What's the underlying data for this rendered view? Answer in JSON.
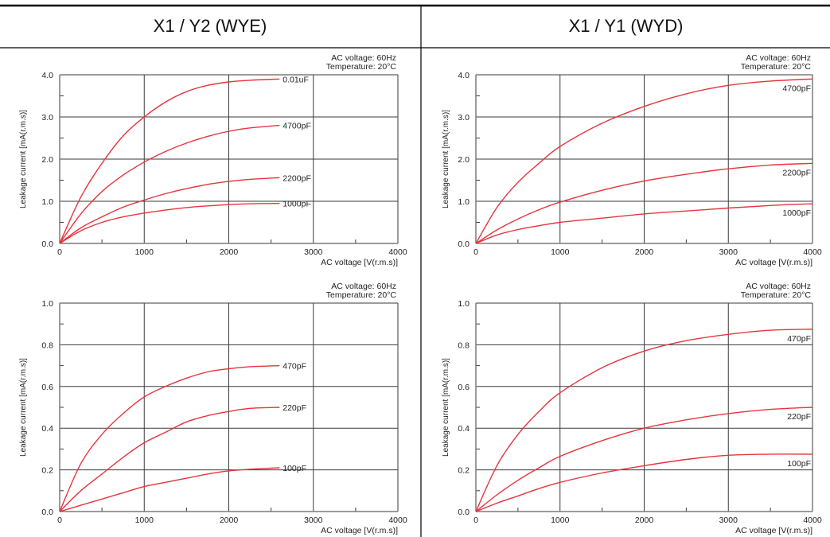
{
  "table": {
    "left_header": "X1 / Y2 (WYE)",
    "right_header": "X1 / Y1 (WYD)"
  },
  "colors": {
    "curve": "#e8333d",
    "grid": "#3a3a3a",
    "axis": "#7a7a7a"
  },
  "chart_data": [
    {
      "type": "line",
      "note1": "AC voltage: 60Hz",
      "note2": "Temperature: 20°C",
      "xlabel": "AC voltage [V(r.m.s)]",
      "ylabel": "Leakage current [mA(r.m.s)]",
      "xlim": [
        0,
        4000
      ],
      "ylim": [
        0,
        4.0
      ],
      "xticks": [
        "0",
        "1000",
        "2000",
        "3000",
        "4000"
      ],
      "yticks": [
        "0.0",
        "1.0",
        "2.0",
        "3.0",
        "4.0"
      ],
      "grid": true,
      "series": [
        {
          "name": "0.01uF",
          "x": [
            0,
            250,
            500,
            750,
            1000,
            1250,
            1500,
            1750,
            2000,
            2250,
            2600
          ],
          "y": [
            0,
            1.1,
            1.9,
            2.55,
            3.0,
            3.35,
            3.6,
            3.75,
            3.83,
            3.87,
            3.9
          ]
        },
        {
          "name": "4700pF",
          "x": [
            0,
            250,
            500,
            750,
            1000,
            1250,
            1500,
            1750,
            2000,
            2250,
            2600
          ],
          "y": [
            0,
            0.7,
            1.23,
            1.62,
            1.93,
            2.18,
            2.38,
            2.54,
            2.66,
            2.74,
            2.8
          ]
        },
        {
          "name": "2200pF",
          "x": [
            0,
            250,
            500,
            750,
            1000,
            1250,
            1500,
            1750,
            2000,
            2250,
            2600
          ],
          "y": [
            0,
            0.37,
            0.63,
            0.86,
            1.03,
            1.18,
            1.3,
            1.4,
            1.47,
            1.52,
            1.56
          ]
        },
        {
          "name": "1000pF",
          "x": [
            0,
            250,
            500,
            750,
            1000,
            1250,
            1500,
            1750,
            2000,
            2250,
            2600
          ],
          "y": [
            0,
            0.3,
            0.5,
            0.63,
            0.72,
            0.79,
            0.85,
            0.89,
            0.92,
            0.94,
            0.95
          ]
        }
      ]
    },
    {
      "type": "line",
      "note1": "AC voltage: 60Hz",
      "note2": "Temperature: 20°C",
      "xlabel": "AC voltage [V(r.m.s)]",
      "ylabel": "Leakage current [mA(r.m.s)]",
      "xlim": [
        0,
        4000
      ],
      "ylim": [
        0,
        4.0
      ],
      "xticks": [
        "0",
        "1000",
        "2000",
        "3000",
        "4000"
      ],
      "yticks": [
        "0.0",
        "1.0",
        "2.0",
        "3.0",
        "4.0"
      ],
      "grid": true,
      "series": [
        {
          "name": "4700pF",
          "x": [
            0,
            250,
            500,
            750,
            1000,
            1500,
            2000,
            2500,
            3000,
            3500,
            4000
          ],
          "y": [
            0,
            0.85,
            1.45,
            1.9,
            2.3,
            2.85,
            3.25,
            3.55,
            3.75,
            3.85,
            3.9
          ]
        },
        {
          "name": "2200pF",
          "x": [
            0,
            250,
            500,
            750,
            1000,
            1500,
            2000,
            2500,
            3000,
            3500,
            4000
          ],
          "y": [
            0,
            0.32,
            0.58,
            0.8,
            0.98,
            1.26,
            1.48,
            1.64,
            1.77,
            1.86,
            1.9
          ]
        },
        {
          "name": "1000pF",
          "x": [
            0,
            250,
            500,
            750,
            1000,
            1500,
            2000,
            2500,
            3000,
            3500,
            4000
          ],
          "y": [
            0,
            0.2,
            0.33,
            0.42,
            0.5,
            0.6,
            0.7,
            0.77,
            0.84,
            0.9,
            0.94
          ]
        }
      ]
    },
    {
      "type": "line",
      "note1": "AC voltage: 60Hz",
      "note2": "Temperature: 20°C",
      "xlabel": "AC voltage [V(r.m.s)]",
      "ylabel": "Leakage current [mA(r.m.s)]",
      "xlim": [
        0,
        4000
      ],
      "ylim": [
        0,
        1.0
      ],
      "xticks": [
        "0",
        "1000",
        "2000",
        "3000",
        "4000"
      ],
      "yticks": [
        "0.0",
        "0.2",
        "0.4",
        "0.6",
        "0.8",
        "1.0"
      ],
      "grid": true,
      "series": [
        {
          "name": "470pF",
          "x": [
            0,
            250,
            500,
            750,
            1000,
            1250,
            1500,
            1750,
            2000,
            2250,
            2600
          ],
          "y": [
            0,
            0.23,
            0.37,
            0.47,
            0.55,
            0.6,
            0.64,
            0.67,
            0.685,
            0.695,
            0.7
          ]
        },
        {
          "name": "220pF",
          "x": [
            0,
            250,
            500,
            750,
            1000,
            1250,
            1500,
            1750,
            2000,
            2250,
            2600
          ],
          "y": [
            0,
            0.1,
            0.18,
            0.26,
            0.33,
            0.38,
            0.43,
            0.46,
            0.48,
            0.495,
            0.5
          ]
        },
        {
          "name": "100pF",
          "x": [
            0,
            250,
            500,
            750,
            1000,
            1250,
            1500,
            1750,
            2000,
            2250,
            2600
          ],
          "y": [
            0,
            0.03,
            0.06,
            0.09,
            0.12,
            0.14,
            0.16,
            0.18,
            0.195,
            0.203,
            0.21
          ]
        }
      ]
    },
    {
      "type": "line",
      "note1": "AC voltage: 60Hz",
      "note2": "Temperature: 20°C",
      "xlabel": "AC voltage [V(r.m.s)]",
      "ylabel": "Leakage current [mA(r.m.s)]",
      "xlim": [
        0,
        4000
      ],
      "ylim": [
        0,
        1.0
      ],
      "xticks": [
        "0",
        "1000",
        "2000",
        "3000",
        "4000"
      ],
      "yticks": [
        "0.0",
        "0.2",
        "0.4",
        "0.6",
        "0.8",
        "1.0"
      ],
      "grid": true,
      "series": [
        {
          "name": "470pF",
          "x": [
            0,
            250,
            500,
            750,
            1000,
            1500,
            2000,
            2500,
            3000,
            3500,
            4000
          ],
          "y": [
            0,
            0.22,
            0.37,
            0.48,
            0.57,
            0.69,
            0.77,
            0.82,
            0.85,
            0.87,
            0.875
          ]
        },
        {
          "name": "220pF",
          "x": [
            0,
            250,
            500,
            750,
            1000,
            1500,
            2000,
            2500,
            3000,
            3500,
            4000
          ],
          "y": [
            0,
            0.08,
            0.15,
            0.21,
            0.265,
            0.34,
            0.4,
            0.44,
            0.47,
            0.49,
            0.5
          ]
        },
        {
          "name": "100pF",
          "x": [
            0,
            250,
            500,
            750,
            1000,
            1500,
            2000,
            2500,
            3000,
            3500,
            4000
          ],
          "y": [
            0,
            0.04,
            0.075,
            0.11,
            0.14,
            0.185,
            0.22,
            0.25,
            0.27,
            0.275,
            0.275
          ]
        }
      ]
    }
  ]
}
